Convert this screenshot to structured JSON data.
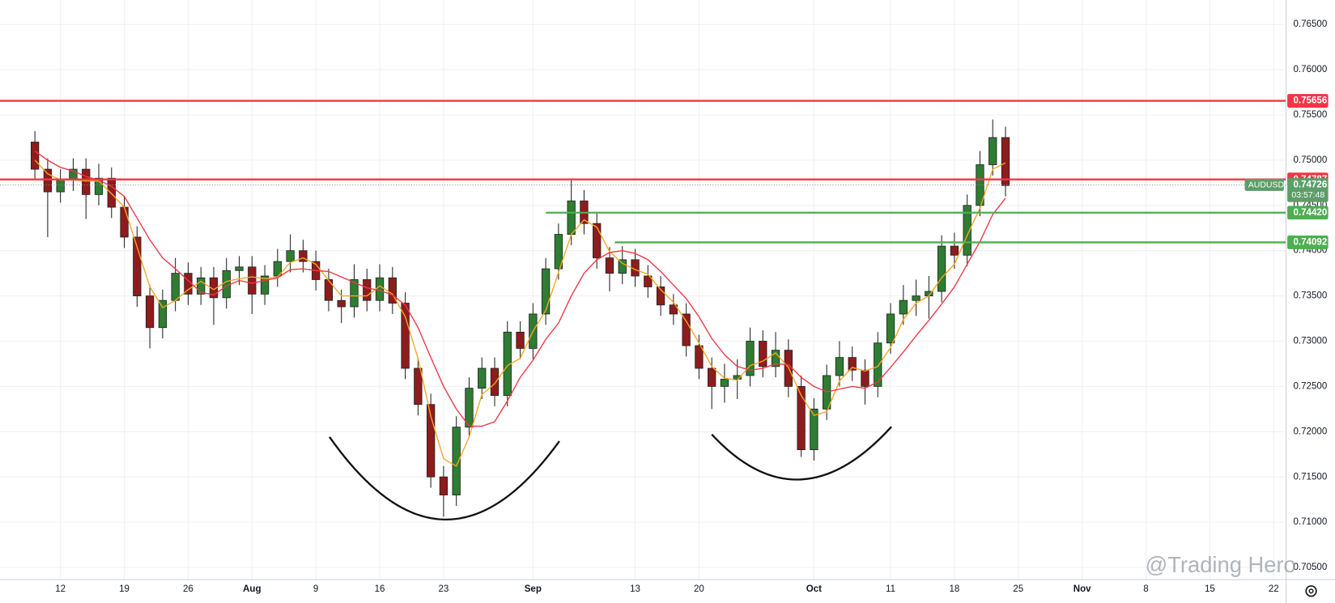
{
  "chart_data": {
    "type": "candlestick",
    "symbol": "AUDUSD",
    "countdown": "03:57:48",
    "watermark": "@Trading Hero",
    "grid": true,
    "up_color": "#2e7d32",
    "down_color": "#8e1c1c",
    "categories": [
      null,
      null,
      "12",
      null,
      null,
      null,
      null,
      "19",
      null,
      null,
      null,
      null,
      "26",
      null,
      null,
      null,
      null,
      "Aug",
      null,
      null,
      null,
      null,
      "9",
      null,
      null,
      null,
      null,
      "16",
      null,
      null,
      null,
      null,
      "23",
      null,
      null,
      null,
      null,
      null,
      null,
      "Sep",
      null,
      null,
      null,
      null,
      null,
      null,
      null,
      "13",
      null,
      null,
      null,
      null,
      "20",
      null,
      null,
      null,
      null,
      null,
      null,
      null,
      null,
      "Oct",
      null,
      null,
      null,
      null,
      null,
      "11",
      null,
      null,
      null,
      null,
      "18",
      null,
      null,
      null,
      null,
      "25",
      null,
      null,
      null,
      null,
      "Nov",
      null,
      null,
      null,
      null,
      "8",
      null,
      null,
      null,
      null,
      "15",
      null,
      null,
      null,
      null,
      "22"
    ],
    "open": [
      0.752,
      0.749,
      0.7465,
      0.7478,
      0.749,
      0.7462,
      0.748,
      0.7448,
      0.7415,
      0.735,
      0.7315,
      0.7345,
      0.7375,
      0.7352,
      0.737,
      0.7348,
      0.7378,
      0.7382,
      0.7352,
      0.7372,
      0.7388,
      0.74,
      0.7388,
      0.7368,
      0.7345,
      0.7338,
      0.7368,
      0.7345,
      0.737,
      0.7342,
      0.727,
      0.723,
      0.715,
      0.713,
      0.7205,
      0.7248,
      0.727,
      0.724,
      0.731,
      0.7292,
      0.733,
      0.738,
      0.7418,
      0.7455,
      0.743,
      0.7392,
      0.7375,
      0.739,
      0.7372,
      0.736,
      0.734,
      0.733,
      0.7295,
      0.727,
      0.725,
      0.7258,
      0.7262,
      0.73,
      0.7272,
      0.729,
      0.725,
      0.718,
      0.7225,
      0.7262,
      0.7282,
      0.7268,
      0.725,
      0.7298,
      0.733,
      0.7345,
      0.735,
      0.7355,
      0.7405,
      0.7395,
      0.745,
      0.7495,
      0.7525,
      null,
      null,
      null,
      null,
      null,
      null,
      null,
      null,
      null,
      null,
      null,
      null,
      null,
      null,
      null,
      null,
      null,
      null,
      null,
      null,
      null
    ],
    "high": [
      0.7532,
      0.7502,
      0.749,
      0.7502,
      0.7502,
      0.7496,
      0.7492,
      0.746,
      0.7427,
      0.7362,
      0.7357,
      0.7392,
      0.7387,
      0.7382,
      0.7382,
      0.7392,
      0.7394,
      0.7394,
      0.7384,
      0.7402,
      0.7418,
      0.7412,
      0.74,
      0.738,
      0.7357,
      0.7385,
      0.738,
      0.7385,
      0.7382,
      0.7354,
      0.7282,
      0.7242,
      0.7162,
      0.7217,
      0.726,
      0.7282,
      0.7282,
      0.7322,
      0.7322,
      0.7342,
      0.7392,
      0.743,
      0.7478,
      0.7467,
      0.7442,
      0.7404,
      0.7405,
      0.7402,
      0.7384,
      0.7372,
      0.7352,
      0.7342,
      0.7307,
      0.7282,
      0.7275,
      0.728,
      0.7315,
      0.7312,
      0.731,
      0.7302,
      0.7262,
      0.7237,
      0.7274,
      0.73,
      0.7294,
      0.728,
      0.731,
      0.7342,
      0.7362,
      0.7368,
      0.7372,
      0.7417,
      0.742,
      0.7462,
      0.751,
      0.7545,
      0.7537,
      null,
      null,
      null,
      null,
      null,
      null,
      null,
      null,
      null,
      null,
      null,
      null,
      null,
      null,
      null,
      null,
      null,
      null,
      null,
      null,
      null
    ],
    "low": [
      0.7478,
      0.7415,
      0.7453,
      0.7466,
      0.7435,
      0.745,
      0.7436,
      0.7403,
      0.7338,
      0.7292,
      0.7303,
      0.7333,
      0.734,
      0.734,
      0.7318,
      0.7336,
      0.7362,
      0.733,
      0.734,
      0.736,
      0.7376,
      0.7376,
      0.7356,
      0.7333,
      0.732,
      0.7326,
      0.7333,
      0.7333,
      0.733,
      0.7258,
      0.7218,
      0.7138,
      0.7106,
      0.7118,
      0.7193,
      0.7236,
      0.7228,
      0.7228,
      0.728,
      0.728,
      0.7318,
      0.7368,
      0.7406,
      0.7418,
      0.738,
      0.7355,
      0.7363,
      0.736,
      0.7348,
      0.7328,
      0.7318,
      0.7283,
      0.7258,
      0.7225,
      0.7232,
      0.7236,
      0.725,
      0.726,
      0.726,
      0.7238,
      0.7172,
      0.7168,
      0.7213,
      0.725,
      0.7256,
      0.723,
      0.7238,
      0.7286,
      0.7318,
      0.7328,
      0.7325,
      0.7343,
      0.738,
      0.7383,
      0.7438,
      0.7483,
      0.746,
      null,
      null,
      null,
      null,
      null,
      null,
      null,
      null,
      null,
      null,
      null,
      null,
      null,
      null,
      null,
      null,
      null,
      null,
      null,
      null,
      null
    ],
    "close": [
      0.749,
      0.7465,
      0.7478,
      0.749,
      0.7462,
      0.748,
      0.7448,
      0.7415,
      0.735,
      0.7315,
      0.7345,
      0.7375,
      0.7352,
      0.737,
      0.7348,
      0.7378,
      0.7382,
      0.7352,
      0.7372,
      0.7388,
      0.74,
      0.7388,
      0.7368,
      0.7345,
      0.7338,
      0.7368,
      0.7345,
      0.737,
      0.7342,
      0.727,
      0.723,
      0.715,
      0.713,
      0.7205,
      0.7248,
      0.727,
      0.724,
      0.731,
      0.7292,
      0.733,
      0.738,
      0.7418,
      0.7455,
      0.743,
      0.7392,
      0.7375,
      0.739,
      0.7372,
      0.736,
      0.734,
      0.733,
      0.7295,
      0.727,
      0.725,
      0.7258,
      0.7262,
      0.73,
      0.7272,
      0.729,
      0.725,
      0.718,
      0.7225,
      0.7262,
      0.7282,
      0.7268,
      0.725,
      0.7298,
      0.733,
      0.7345,
      0.735,
      0.7355,
      0.7405,
      0.7395,
      0.745,
      0.7495,
      0.7525,
      0.7472,
      null,
      null,
      null,
      null,
      null,
      null,
      null,
      null,
      null,
      null,
      null,
      null,
      null,
      null,
      null,
      null,
      null,
      null,
      null,
      null,
      null
    ],
    "overlays": [
      {
        "color": "#f5a623",
        "values": [
          0.75,
          0.7485,
          0.7478,
          0.7478,
          0.7477,
          0.7477,
          0.7463,
          0.7448,
          0.7404,
          0.736,
          0.7337,
          0.7345,
          0.7357,
          0.7366,
          0.7357,
          0.7366,
          0.7369,
          0.7371,
          0.7369,
          0.7371,
          0.7387,
          0.7392,
          0.7385,
          0.7367,
          0.735,
          0.735,
          0.735,
          0.7361,
          0.7352,
          0.7327,
          0.7281,
          0.7217,
          0.717,
          0.7162,
          0.7194,
          0.7241,
          0.7253,
          0.7273,
          0.7281,
          0.7311,
          0.7334,
          0.7376,
          0.7418,
          0.7434,
          0.7426,
          0.7399,
          0.7386,
          0.7379,
          0.7374,
          0.7357,
          0.7343,
          0.7322,
          0.7298,
          0.7272,
          0.7259,
          0.7257,
          0.7273,
          0.7278,
          0.7287,
          0.7271,
          0.724,
          0.7218,
          0.7222,
          0.7256,
          0.7271,
          0.7267,
          0.7272,
          0.7293,
          0.7324,
          0.7342,
          0.735,
          0.737,
          0.7385,
          0.7417,
          0.7447,
          0.749,
          0.7497,
          null,
          null,
          null,
          null,
          null,
          null,
          null,
          null,
          null,
          null,
          null,
          null,
          null,
          null,
          null,
          null,
          null,
          null,
          null,
          null,
          null
        ]
      },
      {
        "color": "#f23645",
        "values": [
          0.751,
          0.75,
          0.7492,
          0.7488,
          0.7482,
          0.7478,
          0.7471,
          0.746,
          0.7436,
          0.7412,
          0.7392,
          0.738,
          0.7367,
          0.7354,
          0.7351,
          0.7361,
          0.7367,
          0.7364,
          0.7367,
          0.737,
          0.7379,
          0.738,
          0.7378,
          0.7377,
          0.7371,
          0.7365,
          0.7359,
          0.7356,
          0.7351,
          0.734,
          0.7315,
          0.7282,
          0.725,
          0.7225,
          0.7206,
          0.7206,
          0.7211,
          0.7234,
          0.726,
          0.7279,
          0.7302,
          0.732,
          0.735,
          0.7375,
          0.739,
          0.7398,
          0.74,
          0.7397,
          0.739,
          0.7377,
          0.7362,
          0.7347,
          0.7327,
          0.7303,
          0.7285,
          0.7272,
          0.7268,
          0.727,
          0.7275,
          0.7274,
          0.726,
          0.725,
          0.7244,
          0.7247,
          0.725,
          0.7248,
          0.7255,
          0.7271,
          0.7288,
          0.7306,
          0.7323,
          0.7341,
          0.736,
          0.7385,
          0.741,
          0.744,
          0.7458,
          null,
          null,
          null,
          null,
          null,
          null,
          null,
          null,
          null,
          null,
          null,
          null,
          null,
          null,
          null,
          null,
          null,
          null,
          null,
          null,
          null
        ]
      }
    ],
    "levels": [
      {
        "price": 0.75656,
        "color": "#f23645"
      },
      {
        "price": 0.74787,
        "color": "#f23645"
      },
      {
        "price": {
          "value": 0.7442,
          "label": "0.74420"
        },
        "color": "#4caf50"
      },
      {
        "price": 0.74092,
        "color": "#4caf50"
      }
    ],
    "last_price": 0.74726,
    "last_color": "#5d9e68",
    "ylim": [
      0.7037,
      0.7677
    ],
    "yticks": [
      {
        "value": 0.705,
        "label": "0.70500"
      },
      {
        "value": 0.71,
        "label": "0.71000"
      },
      {
        "value": 0.715,
        "label": "0.71500"
      },
      {
        "value": 0.72,
        "label": "0.72000"
      },
      {
        "value": 0.725,
        "label": "0.72500"
      },
      {
        "value": 0.73,
        "label": "0.73000"
      },
      {
        "value": 0.735,
        "label": "0.73500"
      },
      {
        "value": 0.74,
        "label": "0.74000"
      },
      {
        "value": 0.745,
        "label": "0.74500"
      },
      {
        "value": 0.75,
        "label": "0.75000"
      },
      {
        "value": 0.755,
        "label": "0.75500"
      },
      {
        "value": 0.76,
        "label": "0.76000"
      },
      {
        "value": 0.765,
        "label": "0.76500"
      }
    ]
  }
}
